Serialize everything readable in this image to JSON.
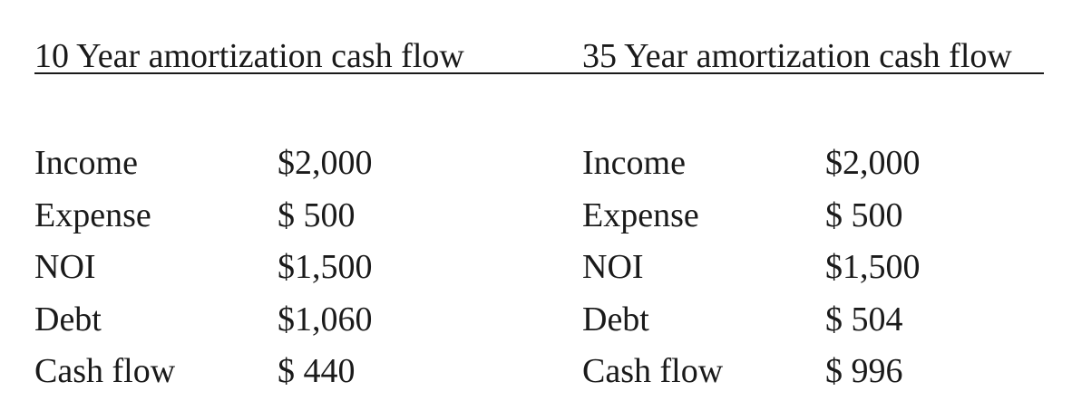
{
  "left": {
    "title": "10 Year amortization cash flow",
    "rows": [
      {
        "label": "Income",
        "value": "$2,000"
      },
      {
        "label": "Expense",
        "value": "$ 500"
      },
      {
        "label": "NOI",
        "value": "$1,500"
      },
      {
        "label": "Debt",
        "value": "$1,060"
      },
      {
        "label": "Cash flow",
        "value": "$ 440"
      }
    ]
  },
  "right": {
    "title": "35 Year amortization cash flow",
    "rows": [
      {
        "label": "Income",
        "value": "$2,000"
      },
      {
        "label": "Expense",
        "value": "$ 500"
      },
      {
        "label": "NOI",
        "value": "$1,500"
      },
      {
        "label": "Debt",
        "value": "$ 504"
      },
      {
        "label": "Cash flow",
        "value": "$ 996"
      }
    ]
  }
}
